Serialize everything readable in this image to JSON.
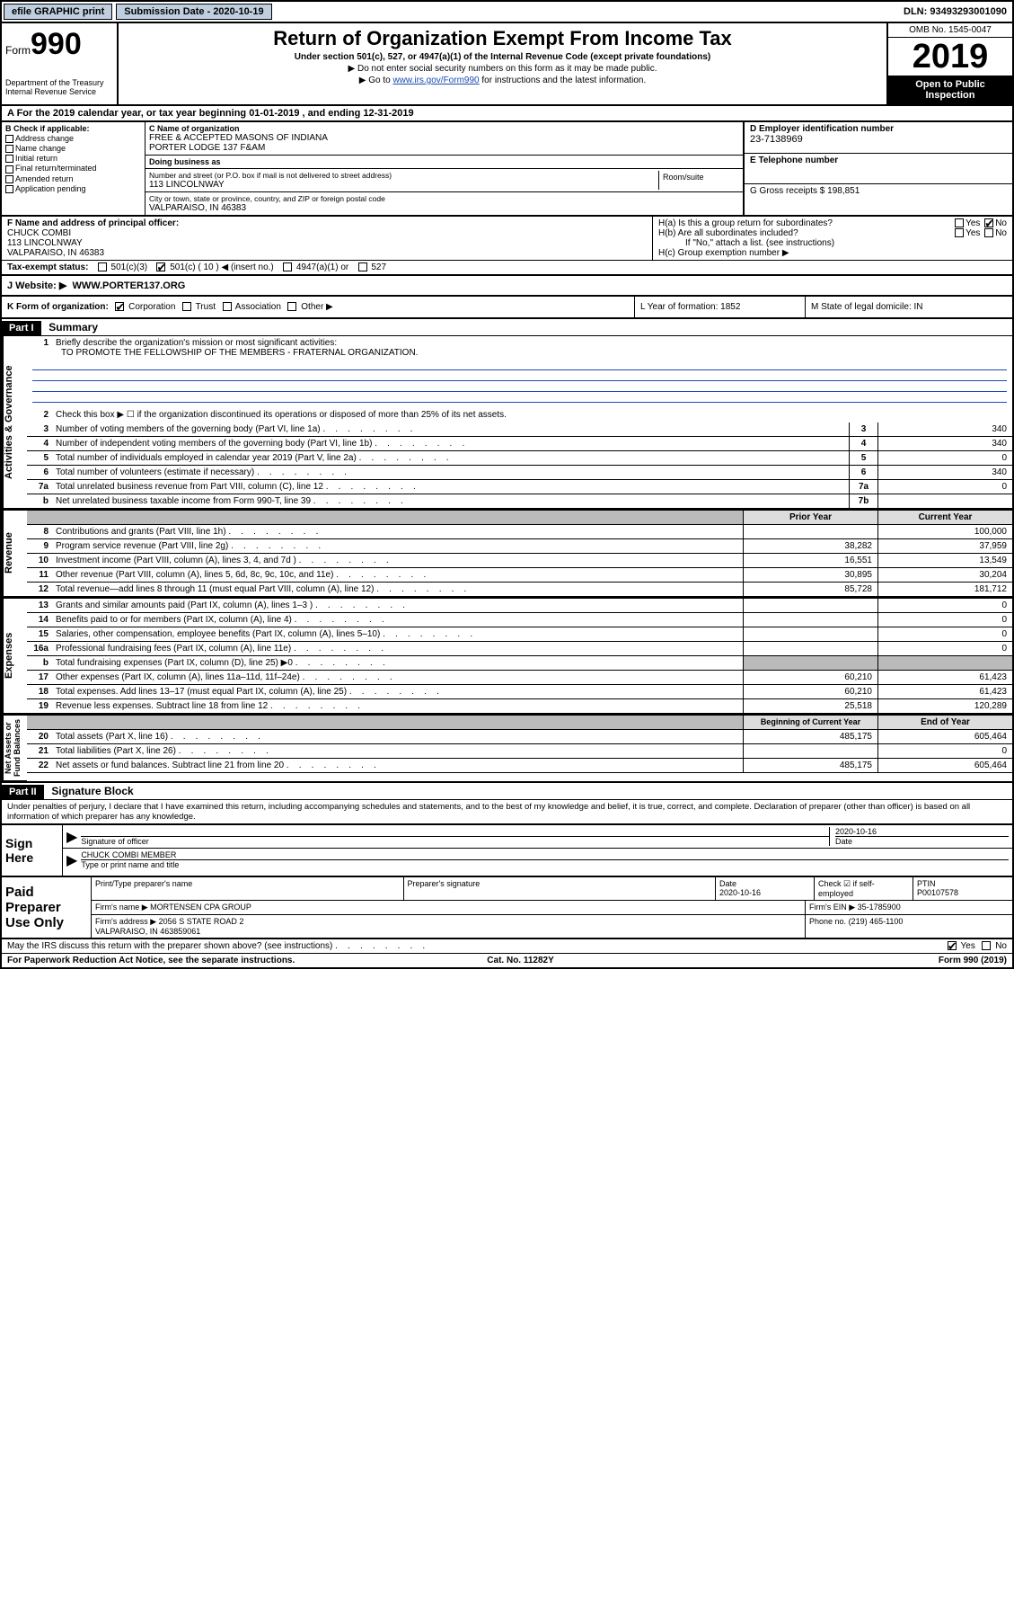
{
  "topbar": {
    "efile": "efile GRAPHIC print",
    "submission_label": "Submission Date - 2020-10-19",
    "dln": "DLN: 93493293001090"
  },
  "header": {
    "form_prefix": "Form",
    "form_number": "990",
    "dept": "Department of the Treasury\nInternal Revenue Service",
    "title": "Return of Organization Exempt From Income Tax",
    "subtitle": "Under section 501(c), 527, or 4947(a)(1) of the Internal Revenue Code (except private foundations)",
    "note1": "▶ Do not enter social security numbers on this form as it may be made public.",
    "note2_prefix": "▶ Go to ",
    "note2_link": "www.irs.gov/Form990",
    "note2_suffix": " for instructions and the latest information.",
    "omb": "OMB No. 1545-0047",
    "year": "2019",
    "inspect": "Open to Public Inspection"
  },
  "section_a": "A For the 2019 calendar year, or tax year beginning 01-01-2019    , and ending 12-31-2019",
  "section_b": {
    "header": "B Check if applicable:",
    "items": [
      "Address change",
      "Name change",
      "Initial return",
      "Final return/terminated",
      "Amended return",
      "Application pending"
    ]
  },
  "section_c": {
    "name_label": "C Name of organization",
    "name": "FREE & ACCEPTED MASONS OF INDIANA\nPORTER LODGE 137 F&AM",
    "dba_label": "Doing business as",
    "street_label": "Number and street (or P.O. box if mail is not delivered to street address)",
    "street": "113 LINCOLNWAY",
    "room_label": "Room/suite",
    "city_label": "City or town, state or province, country, and ZIP or foreign postal code",
    "city": "VALPARAISO, IN  46383"
  },
  "section_d": {
    "label": "D Employer identification number",
    "value": "23-7138969"
  },
  "section_e": {
    "label": "E Telephone number",
    "value": ""
  },
  "section_g": {
    "label": "G Gross receipts $ 198,851"
  },
  "section_f": {
    "label": "F  Name and address of principal officer:",
    "name": "CHUCK COMBI",
    "street": "113 LINCOLNWAY",
    "city": "VALPARAISO, IN  46383"
  },
  "section_h": {
    "a": "H(a)  Is this a group return for subordinates?",
    "b": "H(b)  Are all subordinates included?",
    "b_note": "If \"No,\" attach a list. (see instructions)",
    "c": "H(c)  Group exemption number ▶"
  },
  "tax_status": {
    "label": "Tax-exempt status:",
    "c3": "501(c)(3)",
    "c": "501(c) ( 10 ) ◀ (insert no.)",
    "a4947": "4947(a)(1) or",
    "s527": "527"
  },
  "website": {
    "label": "J   Website: ▶",
    "value": "WWW.PORTER137.ORG"
  },
  "klm": {
    "k_label": "K Form of organization:",
    "k_opts": [
      "Corporation",
      "Trust",
      "Association",
      "Other ▶"
    ],
    "l": "L Year of formation: 1852",
    "m": "M State of legal domicile: IN"
  },
  "part1": {
    "header": "Part I",
    "title": "Summary",
    "line1_label": "Briefly describe the organization's mission or most significant activities:",
    "mission": "TO PROMOTE THE FELLOWSHIP OF THE MEMBERS - FRATERNAL ORGANIZATION.",
    "line2": "Check this box ▶ ☐  if the organization discontinued its operations or disposed of more than 25% of its net assets.",
    "rows_top": [
      {
        "n": "3",
        "t": "Number of voting members of the governing body (Part VI, line 1a)",
        "box": "3",
        "v": "340"
      },
      {
        "n": "4",
        "t": "Number of independent voting members of the governing body (Part VI, line 1b)",
        "box": "4",
        "v": "340"
      },
      {
        "n": "5",
        "t": "Total number of individuals employed in calendar year 2019 (Part V, line 2a)",
        "box": "5",
        "v": "0"
      },
      {
        "n": "6",
        "t": "Total number of volunteers (estimate if necessary)",
        "box": "6",
        "v": "340"
      },
      {
        "n": "7a",
        "t": "Total unrelated business revenue from Part VIII, column (C), line 12",
        "box": "7a",
        "v": "0"
      },
      {
        "n": "b",
        "t": "Net unrelated business taxable income from Form 990-T, line 39",
        "box": "7b",
        "v": ""
      }
    ],
    "col_hdr_prior": "Prior Year",
    "col_hdr_curr": "Current Year",
    "revenue": [
      {
        "n": "8",
        "t": "Contributions and grants (Part VIII, line 1h)",
        "p": "",
        "c": "100,000"
      },
      {
        "n": "9",
        "t": "Program service revenue (Part VIII, line 2g)",
        "p": "38,282",
        "c": "37,959"
      },
      {
        "n": "10",
        "t": "Investment income (Part VIII, column (A), lines 3, 4, and 7d )",
        "p": "16,551",
        "c": "13,549"
      },
      {
        "n": "11",
        "t": "Other revenue (Part VIII, column (A), lines 5, 6d, 8c, 9c, 10c, and 11e)",
        "p": "30,895",
        "c": "30,204"
      },
      {
        "n": "12",
        "t": "Total revenue—add lines 8 through 11 (must equal Part VIII, column (A), line 12)",
        "p": "85,728",
        "c": "181,712"
      }
    ],
    "expenses": [
      {
        "n": "13",
        "t": "Grants and similar amounts paid (Part IX, column (A), lines 1–3 )",
        "p": "",
        "c": "0"
      },
      {
        "n": "14",
        "t": "Benefits paid to or for members (Part IX, column (A), line 4)",
        "p": "",
        "c": "0"
      },
      {
        "n": "15",
        "t": "Salaries, other compensation, employee benefits (Part IX, column (A), lines 5–10)",
        "p": "",
        "c": "0"
      },
      {
        "n": "16a",
        "t": "Professional fundraising fees (Part IX, column (A), line 11e)",
        "p": "",
        "c": "0"
      },
      {
        "n": "b",
        "t": "Total fundraising expenses (Part IX, column (D), line 25) ▶0",
        "p": "grey",
        "c": "grey"
      },
      {
        "n": "17",
        "t": "Other expenses (Part IX, column (A), lines 11a–11d, 11f–24e)",
        "p": "60,210",
        "c": "61,423"
      },
      {
        "n": "18",
        "t": "Total expenses. Add lines 13–17 (must equal Part IX, column (A), line 25)",
        "p": "60,210",
        "c": "61,423"
      },
      {
        "n": "19",
        "t": "Revenue less expenses. Subtract line 18 from line 12",
        "p": "25,518",
        "c": "120,289"
      }
    ],
    "col_hdr_begin": "Beginning of Current Year",
    "col_hdr_end": "End of Year",
    "netassets": [
      {
        "n": "20",
        "t": "Total assets (Part X, line 16)",
        "p": "485,175",
        "c": "605,464"
      },
      {
        "n": "21",
        "t": "Total liabilities (Part X, line 26)",
        "p": "",
        "c": "0"
      },
      {
        "n": "22",
        "t": "Net assets or fund balances. Subtract line 21 from line 20",
        "p": "485,175",
        "c": "605,464"
      }
    ],
    "vtabs": {
      "gov": "Activities & Governance",
      "rev": "Revenue",
      "exp": "Expenses",
      "net": "Net Assets or\nFund Balances"
    }
  },
  "part2": {
    "header": "Part II",
    "title": "Signature Block",
    "jurat": "Under penalties of perjury, I declare that I have examined this return, including accompanying schedules and statements, and to the best of my knowledge and belief, it is true, correct, and complete. Declaration of preparer (other than officer) is based on all information of which preparer has any knowledge.",
    "sign_here": "Sign Here",
    "sig_officer": "Signature of officer",
    "sig_date": "2020-10-16",
    "sig_date_label": "Date",
    "sig_name": "CHUCK COMBI MEMBER",
    "sig_name_label": "Type or print name and title"
  },
  "paid": {
    "label": "Paid Preparer Use Only",
    "h_print": "Print/Type preparer's name",
    "h_sig": "Preparer's signature",
    "h_date": "Date",
    "date": "2020-10-16",
    "h_check": "Check ☑ if self-employed",
    "h_ptin": "PTIN",
    "ptin": "P00107578",
    "firm_name_label": "Firm's name     ▶",
    "firm_name": "MORTENSEN CPA GROUP",
    "firm_ein_label": "Firm's EIN ▶",
    "firm_ein": "35-1785900",
    "firm_addr_label": "Firm's address ▶",
    "firm_addr": "2056 S STATE ROAD 2\nVALPARAISO, IN  463859061",
    "phone_label": "Phone no.",
    "phone": "(219) 465-1100"
  },
  "footer": {
    "discuss": "May the IRS discuss this return with the preparer shown above? (see instructions)",
    "yes": "Yes",
    "no": "No",
    "paperwork": "For Paperwork Reduction Act Notice, see the separate instructions.",
    "cat": "Cat. No. 11282Y",
    "form": "Form 990 (2019)"
  }
}
